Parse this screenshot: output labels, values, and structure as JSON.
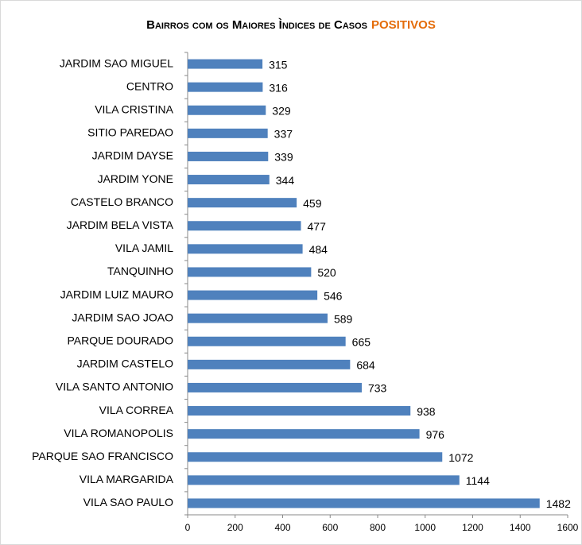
{
  "chart_data": {
    "type": "hbar",
    "title": "Bairros com os Maiores Ìndices de Casos",
    "title_highlight": "POSITIVOS",
    "categories": [
      "JARDIM SAO MIGUEL",
      "CENTRO",
      "VILA CRISTINA",
      "SITIO PAREDAO",
      "JARDIM DAYSE",
      "JARDIM YONE",
      "CASTELO BRANCO",
      "JARDIM BELA VISTA",
      "VILA JAMIL",
      "TANQUINHO",
      "JARDIM LUIZ MAURO",
      "JARDIM SAO JOAO",
      "PARQUE DOURADO",
      "JARDIM CASTELO",
      "VILA SANTO ANTONIO",
      "VILA CORREA",
      "VILA ROMANOPOLIS",
      "PARQUE SAO FRANCISCO",
      "VILA MARGARIDA",
      "VILA SAO PAULO"
    ],
    "values": [
      315,
      316,
      329,
      337,
      339,
      344,
      459,
      477,
      484,
      520,
      546,
      589,
      665,
      684,
      733,
      938,
      976,
      1072,
      1144,
      1482
    ],
    "color": "#4f81bd",
    "title_highlight_color": "#e46c0a",
    "xlim": [
      0,
      1600
    ],
    "xticks": [
      0,
      200,
      400,
      600,
      800,
      1000,
      1200,
      1400,
      1600
    ],
    "grid": false
  }
}
